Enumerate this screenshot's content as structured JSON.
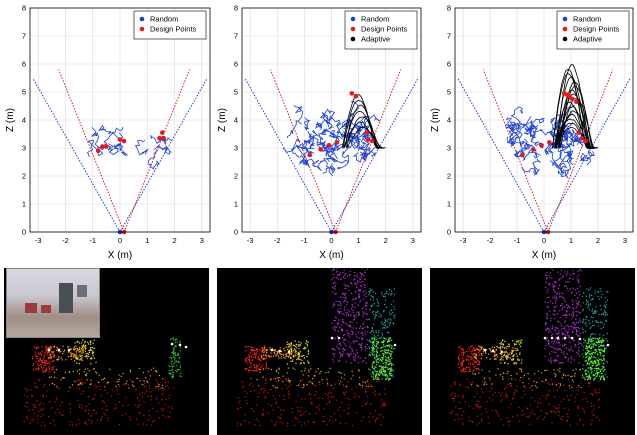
{
  "chart_data": [
    {
      "type": "scatter",
      "panel": "random",
      "xlabel": "X (m)",
      "ylabel": "Z (m)",
      "xlim": [
        -3.3,
        3.3
      ],
      "ylim": [
        0,
        8
      ],
      "xticks": [
        "-3",
        "-2",
        "-1",
        "0",
        "1",
        "2",
        "3"
      ],
      "yticks": [
        "0",
        "1",
        "2",
        "3",
        "4",
        "5",
        "6",
        "7",
        "8"
      ],
      "grid": true,
      "legend": {
        "position": "top-right",
        "entries": [
          "Random",
          "Design Points"
        ]
      },
      "series": [
        {
          "name": "Random",
          "color": "#1a3fd6",
          "points": [
            [
              0.0,
              0.0
            ]
          ]
        },
        {
          "name": "Design Points",
          "color": "#e31a1c",
          "points": [
            [
              0.15,
              0.0
            ],
            [
              -0.8,
              2.9
            ],
            [
              -0.65,
              3.05
            ],
            [
              -0.5,
              3.05
            ],
            [
              0.0,
              3.3
            ],
            [
              0.15,
              3.25
            ],
            [
              1.45,
              3.35
            ],
            [
              1.55,
              3.55
            ],
            [
              1.6,
              3.35
            ]
          ]
        }
      ],
      "fov_lines": {
        "blue_slope_x": 3.2,
        "red_slope_x": 2.4
      }
    },
    {
      "type": "scatter",
      "panel": "adaptive-partial",
      "xlabel": "X (m)",
      "ylabel": "Z (m)",
      "xlim": [
        -3.3,
        3.3
      ],
      "ylim": [
        0,
        8
      ],
      "xticks": [
        "-3",
        "-2",
        "-1",
        "0",
        "1",
        "2",
        "3"
      ],
      "yticks": [
        "0",
        "1",
        "2",
        "3",
        "4",
        "5",
        "6",
        "7",
        "8"
      ],
      "grid": true,
      "legend": {
        "position": "top-right",
        "entries": [
          "Random",
          "Design Points",
          "Adaptive"
        ]
      },
      "series": [
        {
          "name": "Random",
          "color": "#1a3fd6",
          "points": [
            [
              0.0,
              0.0
            ]
          ]
        },
        {
          "name": "Design Points",
          "color": "#e31a1c",
          "points": [
            [
              0.15,
              0.0
            ],
            [
              -0.8,
              2.75
            ],
            [
              -0.4,
              2.95
            ],
            [
              -0.1,
              3.1
            ],
            [
              0.2,
              3.2
            ],
            [
              0.75,
              4.95
            ],
            [
              0.9,
              4.85
            ],
            [
              1.3,
              3.55
            ],
            [
              1.35,
              3.3
            ],
            [
              1.5,
              3.25
            ]
          ]
        },
        {
          "name": "Adaptive",
          "color": "#000000",
          "points": []
        }
      ],
      "fov_lines": {
        "blue_slope_x": 3.2,
        "red_slope_x": 2.4
      }
    },
    {
      "type": "scatter",
      "panel": "adaptive-full",
      "xlabel": "X (m)",
      "ylabel": "Z (m)",
      "xlim": [
        -3.3,
        3.3
      ],
      "ylim": [
        0,
        8
      ],
      "xticks": [
        "-3",
        "-2",
        "-1",
        "0",
        "1",
        "2",
        "3"
      ],
      "yticks": [
        "0",
        "1",
        "2",
        "3",
        "4",
        "5",
        "6",
        "7",
        "8"
      ],
      "grid": true,
      "legend": {
        "position": "top-right",
        "entries": [
          "Random",
          "Design Points",
          "Adaptive"
        ]
      },
      "series": [
        {
          "name": "Random",
          "color": "#1a3fd6",
          "points": [
            [
              0.0,
              0.0
            ]
          ]
        },
        {
          "name": "Design Points",
          "color": "#e31a1c",
          "points": [
            [
              0.15,
              0.0
            ],
            [
              -0.8,
              2.75
            ],
            [
              -0.4,
              2.95
            ],
            [
              -0.1,
              3.1
            ],
            [
              0.2,
              3.2
            ],
            [
              0.75,
              4.95
            ],
            [
              0.85,
              4.9
            ],
            [
              0.95,
              4.85
            ],
            [
              1.05,
              4.75
            ],
            [
              1.2,
              4.65
            ],
            [
              1.3,
              3.55
            ],
            [
              1.4,
              3.35
            ],
            [
              1.55,
              3.25
            ]
          ]
        },
        {
          "name": "Adaptive",
          "color": "#000000",
          "points": []
        }
      ],
      "fov_lines": {
        "blue_slope_x": 3.2,
        "red_slope_x": 2.4
      }
    }
  ],
  "colors": {
    "random": "#1a3fd6",
    "design": "#e31a1c",
    "adaptive": "#000000",
    "grid": "#d9d9d9"
  }
}
